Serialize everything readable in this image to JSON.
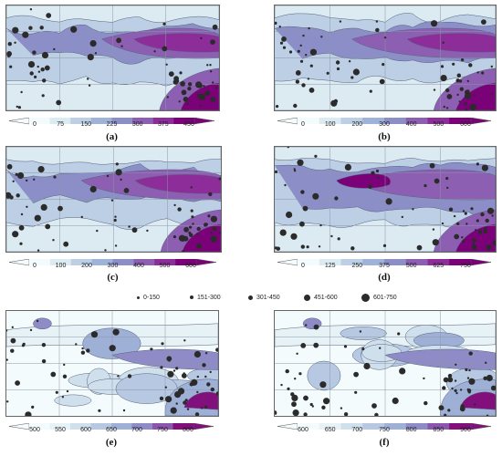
{
  "legend": {
    "items": [
      {
        "label": "0-150"
      },
      {
        "label": "151-300"
      },
      {
        "label": "301-450"
      },
      {
        "label": "451-600"
      },
      {
        "label": "601-750"
      }
    ]
  },
  "panels": [
    {
      "label": "(a)",
      "ticks": [
        "0",
        "75",
        "150",
        "225",
        "300",
        "375",
        "450"
      ],
      "style": "a"
    },
    {
      "label": "(b)",
      "ticks": [
        "0",
        "100",
        "200",
        "300",
        "400",
        "500",
        "600"
      ],
      "style": "b"
    },
    {
      "label": "(c)",
      "ticks": [
        "0",
        "100",
        "200",
        "300",
        "400",
        "500",
        "600"
      ],
      "style": "c"
    },
    {
      "label": "(d)",
      "ticks": [
        "0",
        "125",
        "250",
        "375",
        "500",
        "625",
        "750"
      ],
      "style": "d"
    },
    {
      "label": "(e)",
      "ticks": [
        "500",
        "550",
        "600",
        "650",
        "700",
        "750",
        "800"
      ],
      "style": "e"
    },
    {
      "label": "(f)",
      "ticks": [
        "600",
        "650",
        "700",
        "750",
        "800",
        "850",
        "900"
      ],
      "style": "f"
    }
  ],
  "colors": {
    "scale_dark": [
      "#f4fbfd",
      "#dceaf2",
      "#bccfe5",
      "#9fb3d9",
      "#8c8ec8",
      "#8c5fb2",
      "#8c2d9a",
      "#7a0177"
    ],
    "scale_light": [
      "#f4fbfd",
      "#e6f2f6",
      "#cfe0ec",
      "#b7c9e2",
      "#9fb0d7",
      "#8f8bc6",
      "#8c55ae",
      "#810f7c"
    ],
    "station": "#2b2b2b"
  }
}
